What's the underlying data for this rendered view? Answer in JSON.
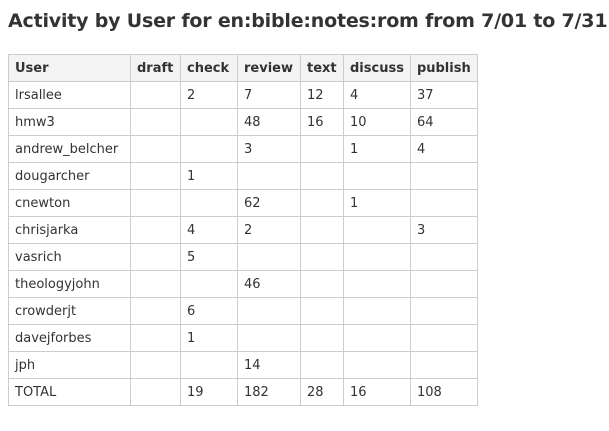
{
  "header": {
    "title": "Activity by User for en:bible:notes:rom from 7/01 to 7/31"
  },
  "table": {
    "columns": [
      "User",
      "draft",
      "check",
      "review",
      "text",
      "discuss",
      "publish"
    ],
    "rows": [
      [
        "lrsallee",
        null,
        2,
        7,
        12,
        4,
        37
      ],
      [
        "hmw3",
        null,
        null,
        48,
        16,
        10,
        64
      ],
      [
        "andrew_belcher",
        null,
        null,
        3,
        null,
        1,
        4
      ],
      [
        "dougarcher",
        null,
        1,
        null,
        null,
        null,
        null
      ],
      [
        "cnewton",
        null,
        null,
        62,
        null,
        1,
        null
      ],
      [
        "chrisjarka",
        null,
        4,
        2,
        null,
        null,
        3
      ],
      [
        "vasrich",
        null,
        5,
        null,
        null,
        null,
        null
      ],
      [
        "theologyjohn",
        null,
        null,
        46,
        null,
        null,
        null
      ],
      [
        "crowderjt",
        null,
        6,
        null,
        null,
        null,
        null
      ],
      [
        "davejforbes",
        null,
        1,
        null,
        null,
        null,
        null
      ],
      [
        "jph",
        null,
        null,
        14,
        null,
        null,
        null
      ],
      [
        "TOTAL",
        null,
        19,
        182,
        28,
        16,
        108
      ]
    ]
  }
}
